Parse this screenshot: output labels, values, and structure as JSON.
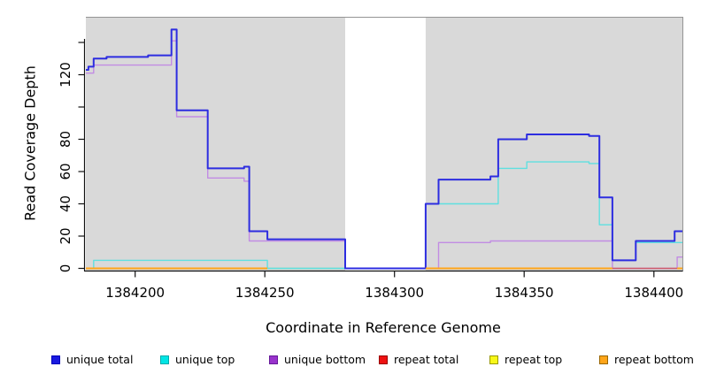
{
  "chart_data": {
    "type": "line",
    "subtype": "step-coverage",
    "title": "",
    "xlabel": "Coordinate in Reference Genome",
    "ylabel": "Read Coverage Depth",
    "xlim": [
      1384181,
      1384411
    ],
    "ylim": [
      0,
      156
    ],
    "grid": false,
    "legend_position": "bottom",
    "panel_bg": "#d9d9d9",
    "panel_border": "#949494",
    "axis_color": "#111111",
    "x_ticks": [
      {
        "v": 1384200,
        "label": "1384200"
      },
      {
        "v": 1384250,
        "label": "1384250"
      },
      {
        "v": 1384300,
        "label": "1384300"
      },
      {
        "v": 1384350,
        "label": "1384350"
      },
      {
        "v": 1384400,
        "label": "1384400"
      }
    ],
    "y_ticks": [
      {
        "v": 0,
        "label": "0"
      },
      {
        "v": 20,
        "label": "20"
      },
      {
        "v": 40,
        "label": "40"
      },
      {
        "v": 60,
        "label": "60"
      },
      {
        "v": 80,
        "label": "80"
      },
      {
        "v": 100,
        "label": ""
      },
      {
        "v": 120,
        "label": "120"
      },
      {
        "v": 140,
        "label": ""
      }
    ],
    "no_data_region": {
      "from": 1384281,
      "to": 1384312,
      "color": "#ffffff"
    },
    "series": [
      {
        "name": "unique bottom",
        "color": "#c28ce3",
        "width": 1.4,
        "points": [
          [
            1384181,
            121
          ],
          [
            1384184,
            126
          ],
          [
            1384214,
            141
          ],
          [
            1384216,
            94
          ],
          [
            1384228,
            56
          ],
          [
            1384242,
            54
          ],
          [
            1384244,
            17
          ],
          [
            1384251,
            17
          ],
          [
            1384281,
            0
          ],
          [
            1384317,
            16
          ],
          [
            1384337,
            17
          ],
          [
            1384384,
            0
          ],
          [
            1384409,
            7
          ]
        ]
      },
      {
        "name": "unique top",
        "color": "#5fe0e0",
        "width": 1.4,
        "points": [
          [
            1384181,
            0
          ],
          [
            1384184,
            5
          ],
          [
            1384251,
            0
          ],
          [
            1384312,
            40
          ],
          [
            1384340,
            62
          ],
          [
            1384351,
            66
          ],
          [
            1384375,
            65
          ],
          [
            1384379,
            27
          ],
          [
            1384384,
            5
          ],
          [
            1384393,
            16
          ],
          [
            1384408,
            16
          ]
        ]
      },
      {
        "name": "unique total",
        "color": "#2d2de0",
        "width": 2,
        "points": [
          [
            1384181,
            123
          ],
          [
            1384182,
            125
          ],
          [
            1384184,
            130
          ],
          [
            1384189,
            131
          ],
          [
            1384205,
            132
          ],
          [
            1384214,
            148
          ],
          [
            1384216,
            98
          ],
          [
            1384228,
            62
          ],
          [
            1384242,
            63
          ],
          [
            1384244,
            23
          ],
          [
            1384251,
            18
          ],
          [
            1384281,
            0
          ],
          [
            1384312,
            40
          ],
          [
            1384317,
            55
          ],
          [
            1384337,
            57
          ],
          [
            1384340,
            80
          ],
          [
            1384351,
            83
          ],
          [
            1384375,
            82
          ],
          [
            1384379,
            44
          ],
          [
            1384384,
            5
          ],
          [
            1384393,
            17
          ],
          [
            1384408,
            23
          ]
        ]
      }
    ],
    "baseline_segments": [
      {
        "name": "overlap-green",
        "color": "#9ed49e",
        "width": 1.4,
        "from": 1384251,
        "to": 1384281,
        "layer": "under"
      },
      {
        "name": "repeat total",
        "color": "#cd5b6b",
        "width": 1.5,
        "from": 1384384,
        "to": 1384409,
        "layer": "over"
      },
      {
        "name": "repeat bottom",
        "color": "#ffa519",
        "width": 2,
        "from": 1384181,
        "to": 1384251,
        "layer": "over"
      },
      {
        "name": "repeat bottom",
        "color": "#ffa519",
        "width": 2,
        "from": 1384312,
        "to": 1384384,
        "layer": "over"
      },
      {
        "name": "repeat bottom",
        "color": "#ffa519",
        "width": 2,
        "from": 1384409,
        "to": 1384411,
        "layer": "over"
      }
    ]
  },
  "legend": {
    "items": [
      {
        "label": "unique total",
        "fill": "#1a1ae0",
        "border": "#0000bb"
      },
      {
        "label": "unique top",
        "fill": "#00e5e5",
        "border": "#00aaaa"
      },
      {
        "label": "unique bottom",
        "fill": "#9933cc",
        "border": "#661a99"
      },
      {
        "label": "repeat total",
        "fill": "#ee1111",
        "border": "#990000"
      },
      {
        "label": "repeat top",
        "fill": "#f7f718",
        "border": "#999900"
      },
      {
        "label": "repeat bottom",
        "fill": "#ffa519",
        "border": "#996600"
      }
    ]
  }
}
